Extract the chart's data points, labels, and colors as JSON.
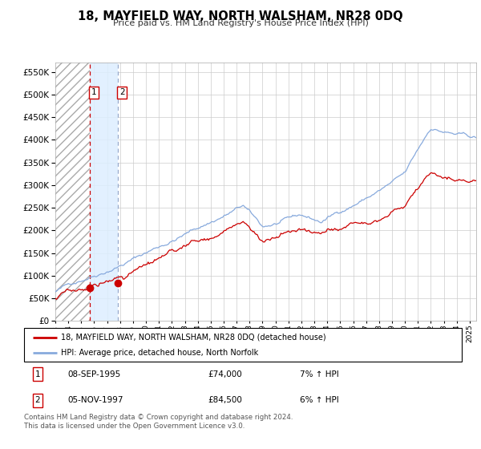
{
  "title": "18, MAYFIELD WAY, NORTH WALSHAM, NR28 0DQ",
  "subtitle": "Price paid vs. HM Land Registry's House Price Index (HPI)",
  "sale1_date_num": 1995.69,
  "sale1_price": 74000,
  "sale2_date_num": 1997.84,
  "sale2_price": 84500,
  "legend_line1": "18, MAYFIELD WAY, NORTH WALSHAM, NR28 0DQ (detached house)",
  "legend_line2": "HPI: Average price, detached house, North Norfolk",
  "table_row1": [
    "1",
    "08-SEP-1995",
    "£74,000",
    "7% ↑ HPI"
  ],
  "table_row2": [
    "2",
    "05-NOV-1997",
    "£84,500",
    "6% ↑ HPI"
  ],
  "footnote": "Contains HM Land Registry data © Crown copyright and database right 2024.\nThis data is licensed under the Open Government Licence v3.0.",
  "price_line_color": "#cc0000",
  "hpi_line_color": "#88aadd",
  "background_color": "#ffffff",
  "grid_color": "#cccccc",
  "xstart": 1993.0,
  "xend": 2025.5,
  "ylim_max": 570000
}
